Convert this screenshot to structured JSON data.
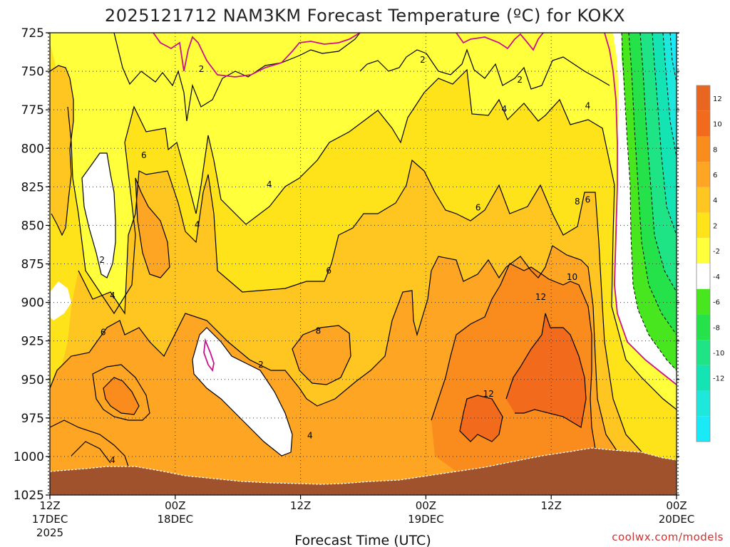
{
  "chart_data": {
    "type": "heatmap",
    "subtype": "time-height filled contour (pressure vs forecast time)",
    "title": "2025121712 NAM3KM Forecast Temperature (ºC) for KOKX",
    "xlabel": "Forecast Time (UTC)",
    "ylabel": "",
    "credit": "coolwx.com/models",
    "units": "°C",
    "x_hours_range": [
      0,
      60
    ],
    "y_pressure_range": [
      1025,
      725
    ],
    "y_ticks": [
      "725",
      "750",
      "775",
      "800",
      "825",
      "850",
      "875",
      "900",
      "925",
      "950",
      "975",
      "1000",
      "1025"
    ],
    "y_tick_values": [
      725,
      750,
      775,
      800,
      825,
      850,
      875,
      900,
      925,
      950,
      975,
      1000,
      1025
    ],
    "x_ticks": [
      {
        "hour": 0,
        "label": "12Z",
        "sub": "17DEC",
        "sub2": "2025"
      },
      {
        "hour": 12,
        "label": "00Z",
        "sub": "18DEC",
        "sub2": ""
      },
      {
        "hour": 24,
        "label": "12Z",
        "sub": "",
        "sub2": ""
      },
      {
        "hour": 36,
        "label": "00Z",
        "sub": "19DEC",
        "sub2": ""
      },
      {
        "hour": 48,
        "label": "12Z",
        "sub": "",
        "sub2": ""
      },
      {
        "hour": 60,
        "label": "00Z",
        "sub": "20DEC",
        "sub2": ""
      }
    ],
    "colorbar": {
      "bins": [
        {
          "label": "12",
          "color": "#f26a1b"
        },
        {
          "label": "10",
          "color": "#fa8c1e"
        },
        {
          "label": "8",
          "color": "#fea523"
        },
        {
          "label": "6",
          "color": "#ffc521"
        },
        {
          "label": "4",
          "color": "#ffe31a"
        },
        {
          "label": "2",
          "color": "#ffff3c"
        },
        {
          "label": "-2",
          "color": "#ffffff"
        },
        {
          "label": "-4",
          "color": "#47e61f"
        },
        {
          "label": "-6",
          "color": "#25e24b"
        },
        {
          "label": "-8",
          "color": "#1fe485"
        },
        {
          "label": "-10",
          "color": "#14e3b3"
        },
        {
          "label": "-12",
          "color": "#1ee8dc"
        },
        {
          "label": "",
          "color": "#1ae9f7"
        }
      ],
      "top_color": "#e8661f"
    },
    "contour_levels": [
      -12,
      -10,
      -8,
      -6,
      -4,
      -2,
      0,
      2,
      4,
      6,
      8,
      10,
      12
    ],
    "contour_labels": [
      {
        "text": "2",
        "hour": 35.7,
        "p": 742
      },
      {
        "text": "2",
        "hour": 14.5,
        "p": 748
      },
      {
        "text": "2",
        "hour": 45.0,
        "p": 755
      },
      {
        "text": "2",
        "hour": 5.0,
        "p": 872
      },
      {
        "text": "2",
        "hour": 20.2,
        "p": 940
      },
      {
        "text": "4",
        "hour": 43.5,
        "p": 774
      },
      {
        "text": "4",
        "hour": 51.5,
        "p": 772
      },
      {
        "text": "4",
        "hour": 21.0,
        "p": 823
      },
      {
        "text": "4",
        "hour": 14.1,
        "p": 849
      },
      {
        "text": "4",
        "hour": 6.0,
        "p": 895
      },
      {
        "text": "4",
        "hour": 24.9,
        "p": 986
      },
      {
        "text": "4",
        "hour": 6.0,
        "p": 1002
      },
      {
        "text": "6",
        "hour": 9.0,
        "p": 804
      },
      {
        "text": "6",
        "hour": 41.0,
        "p": 838
      },
      {
        "text": "6",
        "hour": 51.5,
        "p": 833
      },
      {
        "text": "6",
        "hour": 26.7,
        "p": 879
      },
      {
        "text": "6",
        "hour": 5.1,
        "p": 919
      },
      {
        "text": "8",
        "hour": 50.5,
        "p": 834
      },
      {
        "text": "8",
        "hour": 25.7,
        "p": 918
      },
      {
        "text": "10",
        "hour": 50.0,
        "p": 883
      },
      {
        "text": "12",
        "hour": 47.0,
        "p": 896
      },
      {
        "text": "12",
        "hour": 42.0,
        "p": 959
      }
    ]
  }
}
